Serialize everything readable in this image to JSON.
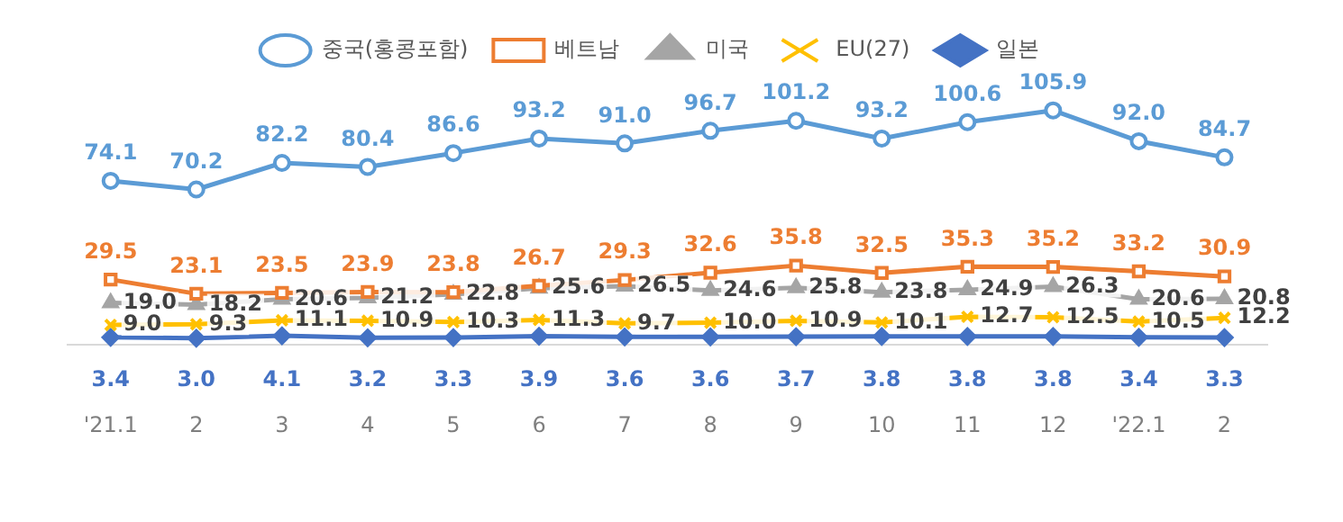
{
  "chart_data": {
    "type": "line",
    "categories": [
      "'21.1",
      "2",
      "3",
      "4",
      "5",
      "6",
      "7",
      "8",
      "9",
      "10",
      "11",
      "12",
      "'22.1",
      "2"
    ],
    "series": [
      {
        "name": "중국(홍콩포함)",
        "color": "#5b9bd5",
        "marker": "circle",
        "values": [
          74.1,
          70.2,
          82.2,
          80.4,
          86.6,
          93.2,
          91.0,
          96.7,
          101.2,
          93.2,
          100.6,
          105.9,
          92.0,
          84.7
        ],
        "value_labels": [
          "74.1",
          "70.2",
          "82.2",
          "80.4",
          "86.6",
          "93.2",
          "91.0",
          "96.7",
          "101.2",
          "93.2",
          "100.6",
          "105.9",
          "92.0",
          "84.7"
        ]
      },
      {
        "name": "베트남",
        "color": "#ed7d31",
        "marker": "square",
        "values": [
          29.5,
          23.1,
          23.5,
          23.9,
          23.8,
          26.7,
          29.3,
          32.6,
          35.8,
          32.5,
          35.3,
          35.2,
          33.2,
          30.9
        ],
        "value_labels": [
          "29.5",
          "23.1",
          "23.5",
          "23.9",
          "23.8",
          "26.7",
          "29.3",
          "32.6",
          "35.8",
          "32.5",
          "35.3",
          "35.2",
          "33.2",
          "30.9"
        ]
      },
      {
        "name": "미국",
        "color": "#a5a5a5",
        "marker": "triangle",
        "values": [
          19.0,
          18.2,
          20.6,
          21.2,
          22.8,
          25.6,
          26.5,
          24.6,
          25.8,
          23.8,
          24.9,
          26.3,
          20.6,
          20.8
        ],
        "value_labels": [
          "19.0",
          "18.2",
          "20.6",
          "21.2",
          "22.8",
          "25.6",
          "26.5",
          "24.6",
          "25.8",
          "23.8",
          "24.9",
          "26.3",
          "20.6",
          "20.8"
        ]
      },
      {
        "name": "EU(27)",
        "color": "#ffc000",
        "marker": "cross",
        "values": [
          9.0,
          9.3,
          11.1,
          10.9,
          10.3,
          11.3,
          9.7,
          10.0,
          10.9,
          10.1,
          12.7,
          12.5,
          10.5,
          12.2
        ],
        "value_labels": [
          "9.0",
          "9.3",
          "11.1",
          "10.9",
          "10.3",
          "11.3",
          "9.7",
          "10.0",
          "10.9",
          "10.1",
          "12.7",
          "12.5",
          "10.5",
          "12.2"
        ]
      },
      {
        "name": "일본",
        "color": "#4472c4",
        "marker": "diamond",
        "values": [
          3.4,
          3.0,
          4.1,
          3.2,
          3.3,
          3.9,
          3.6,
          3.6,
          3.7,
          3.8,
          3.8,
          3.8,
          3.4,
          3.3
        ],
        "value_labels": [
          "3.4",
          "3.0",
          "4.1",
          "3.2",
          "3.3",
          "3.9",
          "3.6",
          "3.6",
          "3.7",
          "3.8",
          "3.8",
          "3.8",
          "3.4",
          "3.3"
        ]
      }
    ],
    "legend": "top",
    "grid": false
  }
}
